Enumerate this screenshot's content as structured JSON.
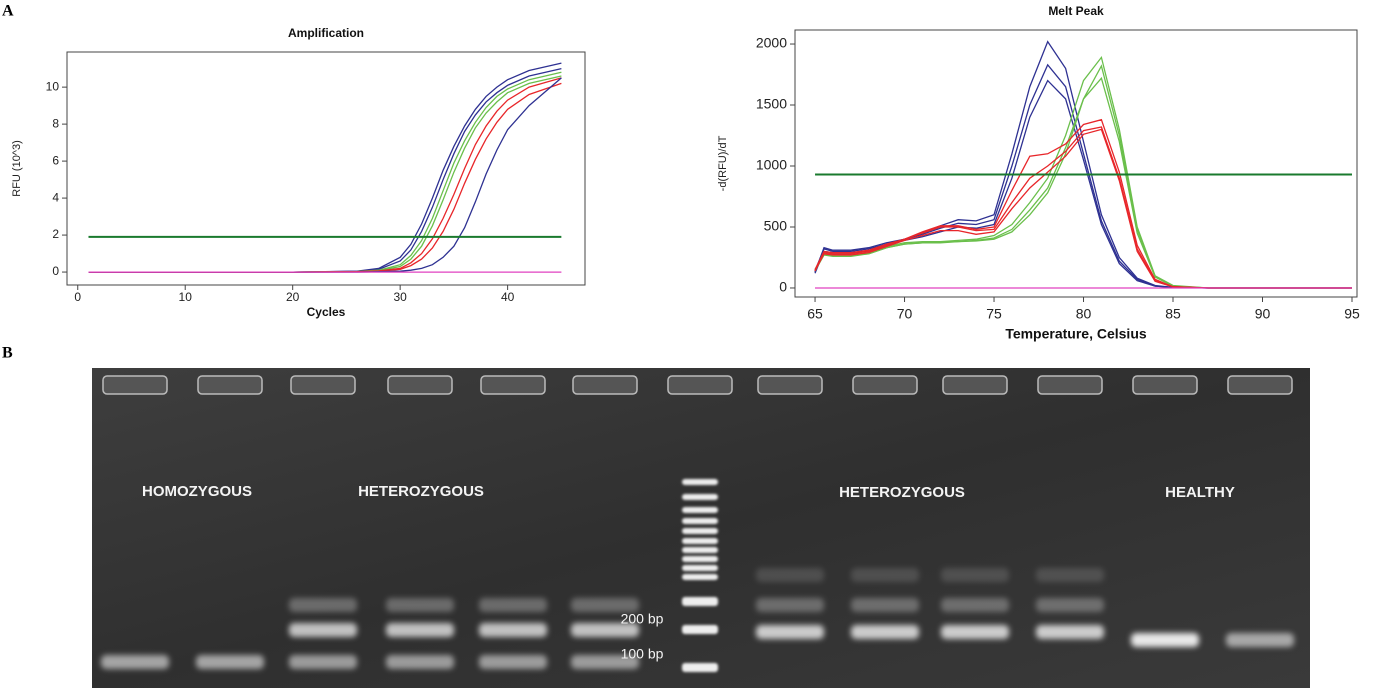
{
  "panel_labels": [
    "A",
    "B"
  ],
  "chart_data": [
    {
      "type": "line",
      "title": "Amplification",
      "x_label": "Cycles",
      "y_label": "RFU (10^3)",
      "x": [
        1,
        10,
        20,
        26,
        28,
        30,
        31,
        32,
        33,
        34,
        35,
        36,
        37,
        38,
        39,
        40,
        42,
        45
      ],
      "xlim": [
        -1,
        47.2
      ],
      "ylim": [
        -0.7,
        11.9
      ],
      "xticks": [
        0,
        10,
        20,
        30,
        40
      ],
      "yticks": [
        0,
        2,
        4,
        6,
        8,
        10
      ],
      "threshold": 1.9,
      "threshold_color": "#1a7a2e",
      "series": [
        {
          "color": "#2e3192",
          "values": [
            0,
            0,
            0,
            0.05,
            0.2,
            0.8,
            1.5,
            2.6,
            4.0,
            5.5,
            6.8,
            7.9,
            8.8,
            9.5,
            10.0,
            10.4,
            10.9,
            11.3
          ]
        },
        {
          "color": "#2e3192",
          "values": [
            0,
            0,
            0,
            0.04,
            0.15,
            0.6,
            1.2,
            2.2,
            3.5,
            5.0,
            6.4,
            7.6,
            8.5,
            9.2,
            9.7,
            10.1,
            10.6,
            11.0
          ]
        },
        {
          "color": "#6abf4b",
          "values": [
            0,
            0,
            0,
            0.03,
            0.1,
            0.4,
            0.9,
            1.7,
            2.9,
            4.4,
            5.9,
            7.1,
            8.1,
            8.9,
            9.5,
            9.9,
            10.4,
            10.8
          ]
        },
        {
          "color": "#6abf4b",
          "values": [
            0,
            0,
            0,
            0.02,
            0.08,
            0.3,
            0.7,
            1.4,
            2.5,
            3.9,
            5.4,
            6.7,
            7.8,
            8.6,
            9.2,
            9.7,
            10.2,
            10.6
          ]
        },
        {
          "color": "#e8262a",
          "values": [
            0,
            0,
            0,
            0.02,
            0.06,
            0.2,
            0.5,
            1.0,
            1.8,
            2.9,
            4.2,
            5.6,
            6.9,
            7.9,
            8.7,
            9.3,
            10.0,
            10.5
          ]
        },
        {
          "color": "#e8262a",
          "values": [
            0,
            0,
            0,
            0.01,
            0.04,
            0.15,
            0.35,
            0.7,
            1.3,
            2.2,
            3.4,
            4.8,
            6.1,
            7.2,
            8.1,
            8.8,
            9.6,
            10.2
          ]
        },
        {
          "color": "#2e3192",
          "values": [
            0,
            0,
            0,
            0,
            0.02,
            0.05,
            0.1,
            0.2,
            0.4,
            0.8,
            1.4,
            2.4,
            3.8,
            5.3,
            6.6,
            7.7,
            9.0,
            10.5
          ]
        },
        {
          "color": "#e040c0",
          "values": [
            0,
            0,
            0,
            0,
            0,
            0,
            0,
            0,
            0,
            0,
            0,
            0,
            0,
            0,
            0,
            0,
            0,
            0
          ]
        }
      ]
    },
    {
      "type": "line",
      "title": "Melt Peak",
      "x_label": "Temperature, Celsius",
      "y_label": "-d(RFU)/dT",
      "x": [
        65,
        65.5,
        66,
        67,
        68,
        69,
        70,
        71,
        72,
        73,
        74,
        75,
        76,
        77,
        78,
        79,
        80,
        81,
        82,
        83,
        84,
        85,
        87,
        90,
        95
      ],
      "xlim": [
        63.88,
        95.28
      ],
      "ylim": [
        -74,
        2115
      ],
      "xticks": [
        65,
        70,
        75,
        80,
        85,
        90,
        95
      ],
      "yticks": [
        0,
        500,
        1000,
        1500,
        2000
      ],
      "threshold": 930,
      "threshold_color": "#1a7a2e",
      "series": [
        {
          "color": "#2e3192",
          "values": [
            130,
            330,
            310,
            310,
            330,
            370,
            400,
            450,
            510,
            560,
            550,
            600,
            1100,
            1650,
            2020,
            1800,
            1200,
            600,
            250,
            80,
            20,
            5,
            0,
            0,
            0
          ]
        },
        {
          "color": "#2e3192",
          "values": [
            140,
            320,
            300,
            300,
            320,
            360,
            400,
            440,
            490,
            530,
            520,
            560,
            1000,
            1500,
            1830,
            1650,
            1100,
            550,
            220,
            70,
            15,
            5,
            0,
            0,
            0
          ]
        },
        {
          "color": "#2e3192",
          "values": [
            120,
            300,
            290,
            290,
            300,
            350,
            390,
            420,
            460,
            500,
            490,
            520,
            900,
            1400,
            1700,
            1550,
            1050,
            520,
            200,
            60,
            15,
            5,
            0,
            0,
            0
          ]
        },
        {
          "color": "#6abf4b",
          "values": [
            150,
            280,
            270,
            270,
            290,
            340,
            370,
            380,
            380,
            390,
            400,
            430,
            520,
            700,
            900,
            1250,
            1700,
            1890,
            1300,
            500,
            100,
            20,
            0,
            0,
            0
          ]
        },
        {
          "color": "#6abf4b",
          "values": [
            140,
            270,
            260,
            260,
            280,
            330,
            360,
            370,
            370,
            380,
            390,
            410,
            480,
            640,
            820,
            1150,
            1550,
            1720,
            1200,
            450,
            90,
            15,
            0,
            0,
            0
          ]
        },
        {
          "color": "#6abf4b",
          "values": [
            150,
            280,
            270,
            270,
            280,
            330,
            360,
            370,
            375,
            380,
            385,
            400,
            460,
            600,
            780,
            1100,
            1550,
            1820,
            1250,
            480,
            95,
            15,
            0,
            0,
            0
          ]
        },
        {
          "color": "#e8262a",
          "values": [
            140,
            290,
            280,
            280,
            300,
            350,
            400,
            460,
            510,
            510,
            480,
            500,
            800,
            1080,
            1100,
            1180,
            1340,
            1380,
            950,
            350,
            70,
            10,
            0,
            0,
            0
          ]
        },
        {
          "color": "#e8262a",
          "values": [
            150,
            300,
            290,
            290,
            310,
            360,
            400,
            450,
            500,
            500,
            470,
            480,
            700,
            900,
            1000,
            1120,
            1290,
            1320,
            900,
            320,
            60,
            10,
            0,
            0,
            0
          ]
        },
        {
          "color": "#e8262a",
          "values": [
            140,
            280,
            270,
            270,
            290,
            340,
            390,
            430,
            470,
            470,
            440,
            460,
            650,
            820,
            950,
            1080,
            1260,
            1300,
            880,
            300,
            55,
            10,
            0,
            0,
            0
          ]
        },
        {
          "color": "#e040c0",
          "values": [
            0,
            0,
            0,
            0,
            0,
            0,
            0,
            0,
            0,
            0,
            0,
            0,
            0,
            0,
            0,
            0,
            0,
            0,
            0,
            0,
            0,
            0,
            0,
            0,
            0
          ]
        }
      ]
    }
  ],
  "gel": {
    "labels": [
      "HOMOZYGOUS",
      "HETEROZYGOUS",
      "HETEROZYGOUS",
      "HEALTHY"
    ],
    "markers": [
      "200 bp",
      "100 bp"
    ]
  }
}
